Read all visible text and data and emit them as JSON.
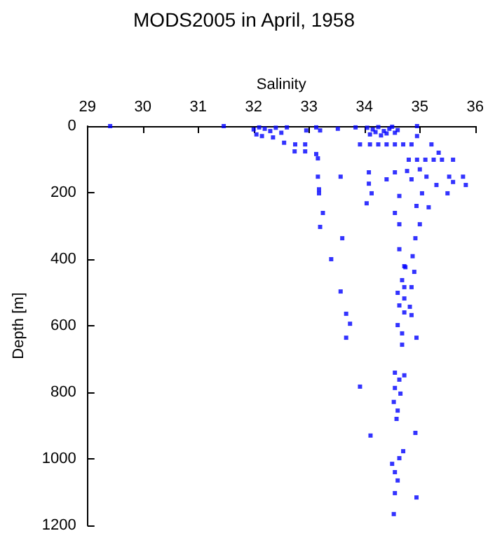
{
  "chart_data": {
    "type": "scatter",
    "title": "MODS2005 in April, 1958",
    "xlabel": "Salinity",
    "ylabel": "Depth [m]",
    "xlim": [
      29,
      36
    ],
    "xticks": [
      29,
      30,
      31,
      32,
      33,
      34,
      35,
      36
    ],
    "ylim": [
      1200,
      0
    ],
    "yticks": [
      0,
      200,
      400,
      600,
      800,
      1000,
      1200
    ],
    "grid": false,
    "marker": "square",
    "series": [
      {
        "color": "#0000ff",
        "x": [
          29.41,
          31.46,
          32.0,
          32.05,
          32.1,
          32.2,
          32.3,
          32.4,
          32.15,
          32.35,
          32.6,
          32.5,
          32.55,
          32.75,
          32.74,
          32.93,
          32.93,
          32.95,
          33.13,
          33.2,
          33.13,
          33.16,
          33.16,
          33.18,
          33.18,
          33.25,
          33.2,
          33.6,
          33.4,
          33.57,
          33.52,
          33.84,
          33.92,
          34.05,
          34.15,
          34.25,
          34.35,
          34.45,
          34.55,
          34.1,
          34.3,
          34.5,
          34.6,
          34.2,
          34.4,
          34.95,
          34.95,
          34.1,
          34.25,
          34.4,
          34.55,
          34.7,
          34.85,
          35.21,
          35.34,
          34.8,
          34.95,
          35.1,
          35.25,
          35.4,
          35.6,
          35.0,
          34.77,
          34.55,
          34.08,
          34.08,
          34.4,
          34.85,
          35.12,
          35.53,
          35.78,
          35.83,
          35.6,
          35.04,
          35.5,
          35.3,
          34.13,
          34.04,
          34.63,
          35.16,
          34.55,
          34.94,
          34.63,
          35.0,
          34.92,
          34.63,
          34.87,
          34.72,
          34.74,
          34.9,
          34.68,
          34.72,
          34.85,
          33.57,
          34.6,
          34.72,
          34.63,
          34.82,
          33.67,
          34.72,
          34.85,
          33.74,
          34.6,
          34.68,
          33.67,
          34.94,
          34.68,
          34.55,
          34.72,
          33.92,
          34.63,
          34.55,
          34.65,
          34.53,
          34.6,
          34.58,
          34.92,
          34.11,
          34.7,
          34.63,
          34.5,
          34.55,
          34.6,
          34.94,
          34.55,
          34.53
        ],
        "values": [
          0,
          0,
          10,
          25,
          4,
          8,
          15,
          5,
          30,
          34,
          4,
          20,
          50,
          55,
          76,
          55,
          76,
          13,
          4,
          13,
          84,
          97,
          152,
          190,
          202,
          261,
          303,
          337,
          400,
          152,
          8,
          4,
          55,
          5,
          10,
          3,
          15,
          8,
          20,
          25,
          28,
          2,
          12,
          18,
          22,
          0,
          30,
          55,
          55,
          55,
          55,
          55,
          55,
          55,
          80,
          101,
          101,
          101,
          101,
          101,
          101,
          130,
          135,
          139,
          139,
          173,
          160,
          160,
          152,
          152,
          152,
          177,
          168,
          202,
          202,
          177,
          202,
          232,
          210,
          244,
          261,
          240,
          295,
          295,
          337,
          370,
          391,
          421,
          424,
          438,
          463,
          484,
          484,
          497,
          501,
          518,
          539,
          543,
          564,
          560,
          568,
          594,
          598,
          623,
          636,
          636,
          657,
          741,
          749,
          783,
          762,
          787,
          804,
          829,
          855,
          880,
          922,
          930,
          977,
          998,
          1015,
          1040,
          1065,
          1116,
          1103,
          1166
        ]
      }
    ]
  }
}
